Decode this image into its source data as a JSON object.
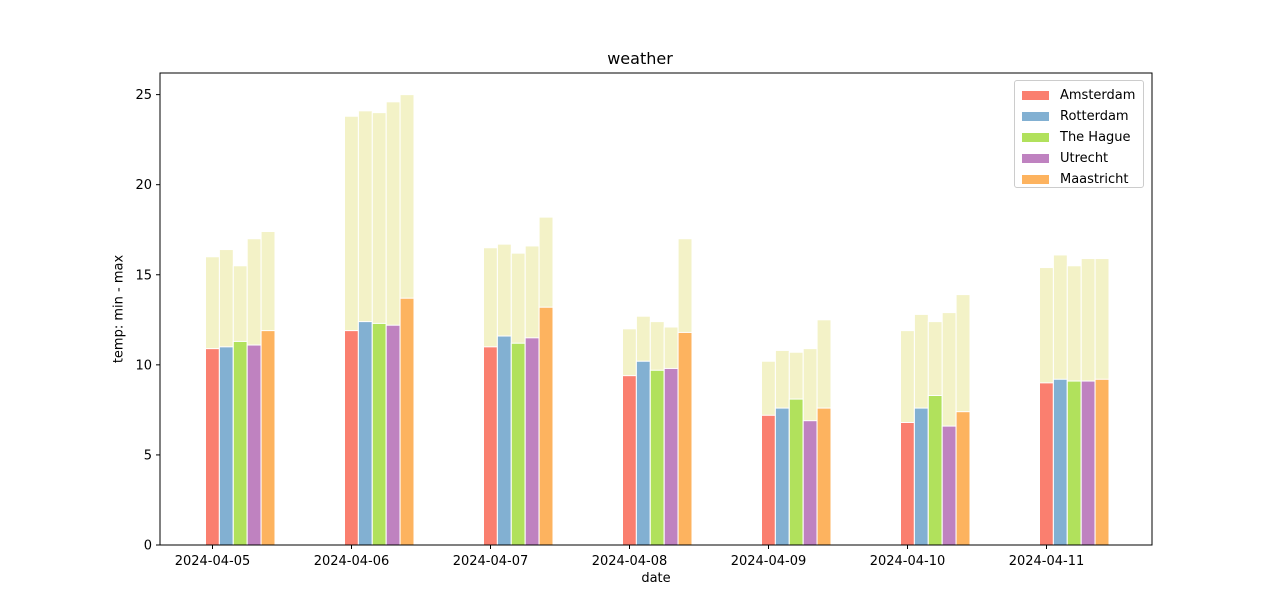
{
  "chart_data": {
    "type": "bar",
    "title": "weather",
    "xlabel": "date",
    "ylabel": "temp: min - max",
    "ylim": [
      0,
      26.2
    ],
    "yticks": [
      0,
      5,
      10,
      15,
      20,
      25
    ],
    "categories": [
      "2024-04-05",
      "2024-04-06",
      "2024-04-07",
      "2024-04-08",
      "2024-04-09",
      "2024-04-10",
      "2024-04-11"
    ],
    "max_color": "#f3f2c7",
    "legend_position": "top-right",
    "grid": false,
    "series": [
      {
        "name": "Amsterdam",
        "color": "#fa7f6f",
        "min": [
          10.9,
          11.9,
          11.0,
          9.4,
          7.2,
          6.8,
          9.0
        ],
        "max": [
          16.0,
          23.8,
          16.5,
          12.0,
          10.2,
          11.9,
          15.4
        ]
      },
      {
        "name": "Rotterdam",
        "color": "#82b0d2",
        "min": [
          11.0,
          12.4,
          11.6,
          10.2,
          7.6,
          7.6,
          9.2
        ],
        "max": [
          16.4,
          24.1,
          16.7,
          12.7,
          10.8,
          12.8,
          16.1
        ]
      },
      {
        "name": "The Hague",
        "color": "#b1e15c",
        "min": [
          11.3,
          12.3,
          11.2,
          9.7,
          8.1,
          8.3,
          9.1
        ],
        "max": [
          15.5,
          24.0,
          16.2,
          12.4,
          10.7,
          12.4,
          15.5
        ]
      },
      {
        "name": "Utrecht",
        "color": "#bf82c0",
        "min": [
          11.1,
          12.2,
          11.5,
          9.8,
          6.9,
          6.6,
          9.1
        ],
        "max": [
          17.0,
          24.6,
          16.6,
          12.1,
          10.9,
          12.9,
          15.9
        ]
      },
      {
        "name": "Maastricht",
        "color": "#fdb35f",
        "min": [
          11.9,
          13.7,
          13.2,
          11.8,
          7.6,
          7.4,
          9.2
        ],
        "max": [
          17.4,
          25.0,
          18.2,
          17.0,
          12.5,
          13.9,
          15.9
        ]
      }
    ]
  }
}
